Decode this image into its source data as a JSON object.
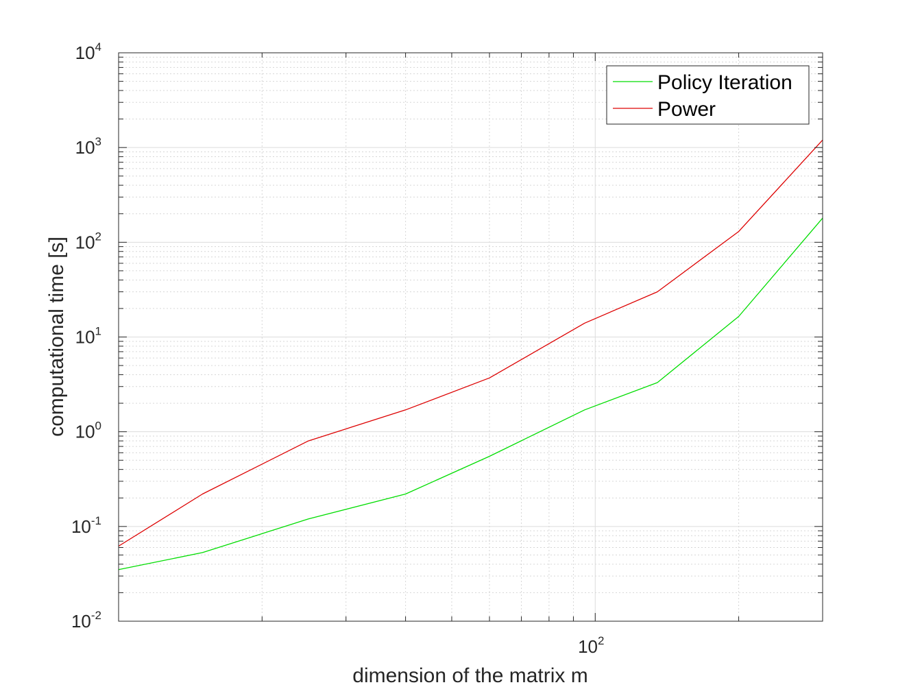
{
  "chart_data": {
    "type": "line",
    "xlabel": "dimension of the matrix m",
    "ylabel": "computational time [s]",
    "x_scale": "log",
    "y_scale": "log",
    "xlim": [
      10,
      300
    ],
    "ylim": [
      0.01,
      10000
    ],
    "grid": true,
    "legend_position": "top-right",
    "x_ticks": [
      {
        "base": "10",
        "exp": "2",
        "value": 100
      }
    ],
    "y_ticks": [
      {
        "base": "10",
        "exp": "-2",
        "value": 0.01
      },
      {
        "base": "10",
        "exp": "-1",
        "value": 0.1
      },
      {
        "base": "10",
        "exp": "0",
        "value": 1
      },
      {
        "base": "10",
        "exp": "1",
        "value": 10
      },
      {
        "base": "10",
        "exp": "2",
        "value": 100
      },
      {
        "base": "10",
        "exp": "3",
        "value": 1000
      },
      {
        "base": "10",
        "exp": "4",
        "value": 10000
      }
    ],
    "series": [
      {
        "name": "Policy Iteration",
        "color": "#00dd00",
        "x": [
          10,
          15,
          25,
          40,
          60,
          95,
          135,
          200,
          300
        ],
        "y": [
          0.035,
          0.053,
          0.12,
          0.22,
          0.55,
          1.7,
          3.3,
          16.5,
          180
        ]
      },
      {
        "name": "Power",
        "color": "#dd0000",
        "x": [
          10,
          15,
          25,
          40,
          60,
          95,
          135,
          200,
          300
        ],
        "y": [
          0.062,
          0.22,
          0.8,
          1.7,
          3.7,
          14,
          30,
          130,
          1200
        ]
      }
    ]
  }
}
